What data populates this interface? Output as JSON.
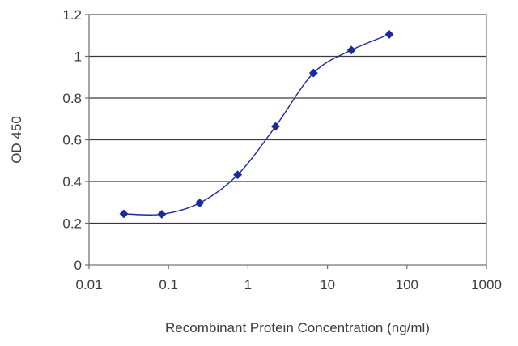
{
  "chart_data": {
    "type": "line",
    "title": "",
    "xlabel": "Recombinant Protein Concentration (ng/ml)",
    "ylabel": "OD 450",
    "x_scale": "log",
    "xlim": [
      0.01,
      1000
    ],
    "ylim": [
      0,
      1.2
    ],
    "x_ticks": [
      0.01,
      0.1,
      1,
      10,
      100,
      1000
    ],
    "x_tick_labels": [
      "0.01",
      "0.1",
      "1",
      "10",
      "100",
      "1000"
    ],
    "y_ticks": [
      0,
      0.2,
      0.4,
      0.6,
      0.8,
      1,
      1.2
    ],
    "y_tick_labels": [
      "0",
      "0.2",
      "0.4",
      "0.6",
      "0.8",
      "1",
      "1.2"
    ],
    "grid": "horizontal",
    "legend": "none",
    "series": [
      {
        "x": [
          0.0274,
          0.0823,
          0.247,
          0.741,
          2.22,
          6.67,
          20,
          60
        ],
        "y": [
          0.245,
          0.243,
          0.297,
          0.432,
          0.664,
          0.92,
          1.03,
          1.105
        ],
        "color": "#1c2a99",
        "marker": "diamond",
        "smooth": true
      }
    ]
  }
}
